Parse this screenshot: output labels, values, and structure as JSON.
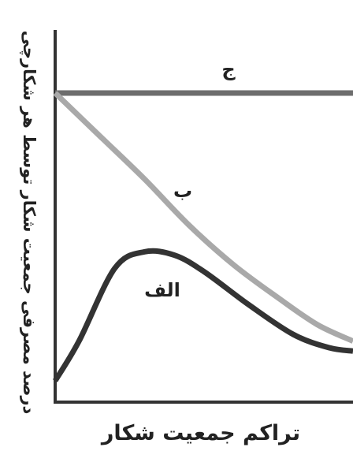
{
  "chart_data": {
    "type": "line",
    "title": "",
    "xlabel": "تراکم جمعیت شکار",
    "ylabel": "درصد مصرفی جمعیت شکار توسط هر شکارچی",
    "ticks": "none",
    "grid": false,
    "legend": "none",
    "series": [
      {
        "name": "ج",
        "color": "#6d6d6d",
        "points": [
          [
            0,
            0.87
          ],
          [
            1,
            0.87
          ]
        ]
      },
      {
        "name": "ب",
        "color": "#a9a9a9",
        "points": [
          [
            0,
            0.87
          ],
          [
            0.15,
            0.74
          ],
          [
            0.3,
            0.61
          ],
          [
            0.45,
            0.47
          ],
          [
            0.6,
            0.35
          ],
          [
            0.75,
            0.25
          ],
          [
            0.88,
            0.17
          ],
          [
            1,
            0.12
          ]
        ]
      },
      {
        "name": "الف",
        "color": "#333333",
        "points": [
          [
            0,
            0.0
          ],
          [
            0.08,
            0.12
          ],
          [
            0.2,
            0.34
          ],
          [
            0.3,
            0.39
          ],
          [
            0.4,
            0.38
          ],
          [
            0.5,
            0.33
          ],
          [
            0.65,
            0.23
          ],
          [
            0.8,
            0.14
          ],
          [
            0.92,
            0.1
          ],
          [
            1,
            0.09
          ]
        ]
      }
    ]
  }
}
